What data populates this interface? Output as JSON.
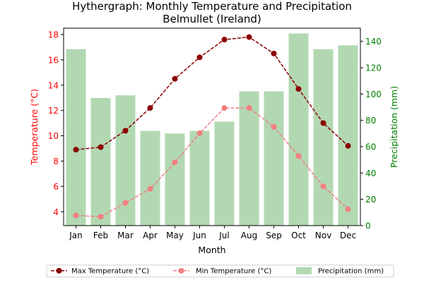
{
  "colors": {
    "max_line": "#8b0000",
    "min_line": "#f08080",
    "bars": "#b2d8b2",
    "left_axis": "#ff0000",
    "right_axis": "#008000"
  },
  "chart_data": {
    "type": "bar+line",
    "title": "Hythergraph: Monthly Temperature and Precipitation",
    "subtitle": "Belmullet (Ireland)",
    "xlabel": "Month",
    "ylabel_left": "Temperature (°C)",
    "ylabel_right": "Precipitation (mm)",
    "categories": [
      "Jan",
      "Feb",
      "Mar",
      "Apr",
      "May",
      "Jun",
      "Jul",
      "Aug",
      "Sep",
      "Oct",
      "Nov",
      "Dec"
    ],
    "ylim_left": [
      2.9,
      18.5
    ],
    "yticks_left": [
      4,
      6,
      8,
      10,
      12,
      14,
      16,
      18
    ],
    "ylim_right": [
      0,
      150
    ],
    "yticks_right": [
      0,
      20,
      40,
      60,
      80,
      100,
      120,
      140
    ],
    "series": [
      {
        "name": "Max Temperature (°C)",
        "kind": "line",
        "axis": "left",
        "values": [
          8.9,
          9.1,
          10.4,
          12.2,
          14.5,
          16.2,
          17.6,
          17.8,
          16.5,
          13.7,
          11.0,
          9.2
        ]
      },
      {
        "name": "Min Temperature (°C)",
        "kind": "line",
        "axis": "left",
        "values": [
          3.7,
          3.6,
          4.7,
          5.8,
          7.9,
          10.2,
          12.2,
          12.2,
          10.7,
          8.4,
          6.0,
          4.2
        ]
      },
      {
        "name": "Precipitation (mm)",
        "kind": "bar",
        "axis": "right",
        "values": [
          134,
          97,
          99,
          72,
          70,
          72,
          79,
          102,
          102,
          146,
          134,
          137
        ]
      }
    ],
    "grid": false,
    "legend_position": "bottom"
  }
}
